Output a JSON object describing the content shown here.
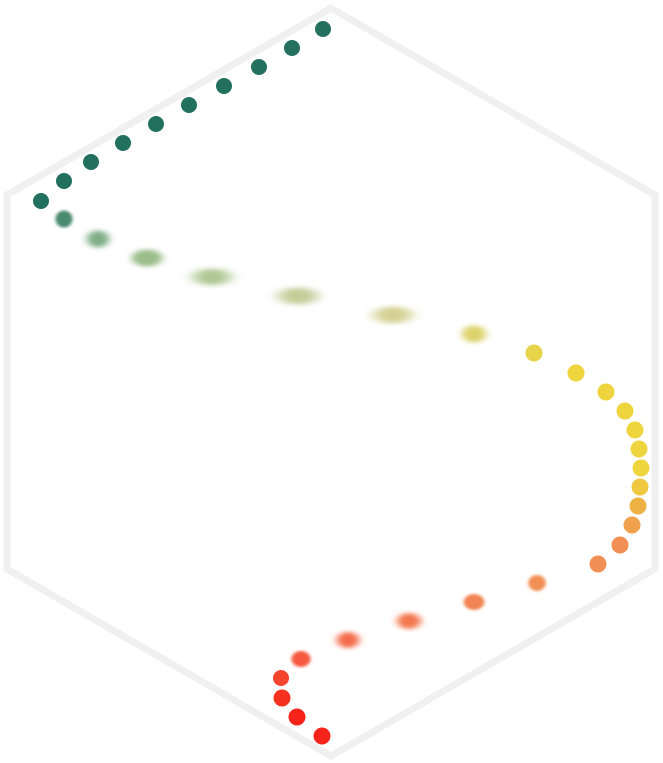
{
  "logo": {
    "frame_color": "#f1f0f0",
    "fill_color": "#ffffff",
    "palette": {
      "green": "#23705f",
      "yellow": "#eed53e",
      "orange": "#f28f54",
      "red": "#f5231a"
    },
    "dots": [
      {
        "color": "#23705f",
        "blur": 0
      },
      {
        "color": "#23705f",
        "blur": 0
      },
      {
        "color": "#23705f",
        "blur": 0
      },
      {
        "color": "#23705f",
        "blur": 0
      },
      {
        "color": "#23705f",
        "blur": 0
      },
      {
        "color": "#23705f",
        "blur": 0
      },
      {
        "color": "#23705f",
        "blur": 0
      },
      {
        "color": "#23705f",
        "blur": 0
      },
      {
        "color": "#23705f",
        "blur": 0
      },
      {
        "color": "#23705f",
        "blur": 0
      },
      {
        "color": "#4a8a6e",
        "blur": 0.3
      },
      {
        "color": "#7fae86",
        "blur": 0.5
      },
      {
        "color": "#9bbd8a",
        "blur": 0.7
      },
      {
        "color": "#b0c795",
        "blur": 0.85
      },
      {
        "color": "#c4cd98",
        "blur": 1
      },
      {
        "color": "#d4d092",
        "blur": 0.9
      },
      {
        "color": "#ddd16a",
        "blur": 0.5
      },
      {
        "color": "#e8d44a",
        "blur": 0
      },
      {
        "color": "#eed53e",
        "blur": 0
      },
      {
        "color": "#eed53e",
        "blur": 0
      },
      {
        "color": "#eed53e",
        "blur": 0
      },
      {
        "color": "#eed53e",
        "blur": 0
      },
      {
        "color": "#eed53e",
        "blur": 0
      },
      {
        "color": "#eed53e",
        "blur": 0
      },
      {
        "color": "#eec841",
        "blur": 0
      },
      {
        "color": "#eeb244",
        "blur": 0
      },
      {
        "color": "#f1a04c",
        "blur": 0
      },
      {
        "color": "#f28f54",
        "blur": 0
      },
      {
        "color": "#f28f54",
        "blur": 0
      },
      {
        "color": "#f28f54",
        "blur": 0.2
      },
      {
        "color": "#f28452",
        "blur": 0.4
      },
      {
        "color": "#f3784f",
        "blur": 0.6
      },
      {
        "color": "#f46a49",
        "blur": 0.5
      },
      {
        "color": "#f55a40",
        "blur": 0.3
      },
      {
        "color": "#f5452f",
        "blur": 0
      },
      {
        "color": "#f5321f",
        "blur": 0
      },
      {
        "color": "#f5231a",
        "blur": 0
      },
      {
        "color": "#f5231a",
        "blur": 0
      }
    ]
  }
}
